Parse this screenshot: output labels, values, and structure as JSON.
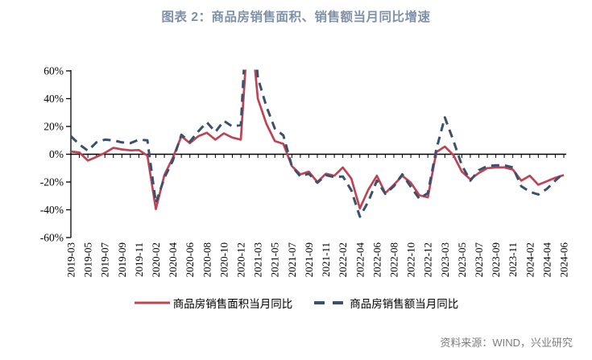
{
  "title": "图表 2：商品房销售面积、销售额当月同比增速",
  "source": "资料来源：WIND，兴业研究",
  "colors": {
    "title": "#7E90A9",
    "axis": "#000000",
    "tick_label": "#000000",
    "area_line": "#BF4453",
    "amount_line": "#3A506E",
    "source_text": "#7C7C7C",
    "background": "#FFFFFF"
  },
  "legend": [
    {
      "label": "商品房销售面积当月同比",
      "style": "solid"
    },
    {
      "label": "商品房销售额当月同比",
      "style": "dashed"
    }
  ],
  "chart_data": {
    "type": "line",
    "title": "图表 2：商品房销售面积、销售额当月同比增速",
    "xlabel": "",
    "ylabel": "",
    "ylim": [
      -60,
      60
    ],
    "grid": false,
    "legend_position": "bottom",
    "clipped_above": 60,
    "yticks": [
      {
        "value": 60,
        "label": "60%"
      },
      {
        "value": 40,
        "label": "40%"
      },
      {
        "value": 20,
        "label": "20%"
      },
      {
        "value": 0,
        "label": "0%"
      },
      {
        "value": -20,
        "label": "-20%"
      },
      {
        "value": -40,
        "label": "-40%"
      },
      {
        "value": -60,
        "label": "-60%"
      }
    ],
    "x": [
      "2019-03",
      "2019-04",
      "2019-05",
      "2019-06",
      "2019-07",
      "2019-08",
      "2019-09",
      "2019-10",
      "2019-11",
      "2019-12",
      "2020-02",
      "2020-03",
      "2020-04",
      "2020-05",
      "2020-06",
      "2020-07",
      "2020-08",
      "2020-09",
      "2020-10",
      "2020-11",
      "2020-12",
      "2021-02",
      "2021-03",
      "2021-04",
      "2021-05",
      "2021-06",
      "2021-07",
      "2021-08",
      "2021-09",
      "2021-10",
      "2021-11",
      "2021-12",
      "2022-02",
      "2022-03",
      "2022-04",
      "2022-05",
      "2022-06",
      "2022-07",
      "2022-08",
      "2022-09",
      "2022-10",
      "2022-11",
      "2022-12",
      "2023-02",
      "2023-03",
      "2023-04",
      "2023-05",
      "2023-06",
      "2023-07",
      "2023-08",
      "2023-09",
      "2023-10",
      "2023-11",
      "2023-12",
      "2024-02",
      "2024-03",
      "2024-04",
      "2024-05",
      "2024-06"
    ],
    "x_axis_tick_labels": [
      "2019-03",
      "2019-05",
      "2019-07",
      "2019-09",
      "2019-11",
      "2020-02",
      "2020-04",
      "2020-06",
      "2020-08",
      "2020-10",
      "2020-12",
      "2021-03",
      "2021-05",
      "2021-07",
      "2021-09",
      "2021-11",
      "2022-02",
      "2022-04",
      "2022-06",
      "2022-08",
      "2022-10",
      "2022-12",
      "2023-03",
      "2023-05",
      "2023-07",
      "2023-09",
      "2023-11",
      "2024-02",
      "2024-04",
      "2024-06"
    ],
    "series": [
      {
        "name": "商品房销售面积当月同比",
        "style": "solid",
        "color": "#BF4453",
        "values": [
          2,
          1.2,
          -4.6,
          -2,
          1,
          4.6,
          3.5,
          2.8,
          3,
          -1,
          -39.5,
          -15,
          -2.5,
          13,
          8,
          13,
          15.5,
          10.5,
          15,
          12,
          10.5,
          105,
          40,
          22,
          9.5,
          7.5,
          -8.5,
          -14.5,
          -12.5,
          -20,
          -14,
          -15.5,
          -9.5,
          -17.5,
          -39,
          -25.5,
          -15.5,
          -28,
          -22,
          -15.5,
          -20.5,
          -29.5,
          -31,
          1.5,
          5.5,
          -0.5,
          -12.5,
          -18,
          -13.5,
          -10,
          -9.5,
          -9.5,
          -11,
          -19,
          -15.5,
          -22,
          -19.5,
          -17,
          -15
        ]
      },
      {
        "name": "商品房销售额当月同比",
        "style": "dashed",
        "color": "#3A506E",
        "values": [
          13,
          7,
          2.5,
          8.5,
          10.5,
          10,
          8.5,
          8,
          10.5,
          10,
          -35,
          -17,
          -4.5,
          14,
          9,
          16.5,
          23,
          16,
          24,
          20,
          21,
          133,
          55,
          34.5,
          18.5,
          13.5,
          -8.5,
          -16,
          -14,
          -20.5,
          -15,
          -16.5,
          -16,
          -26,
          -45,
          -34,
          -19,
          -28.5,
          -23,
          -14.5,
          -23.5,
          -32,
          -28,
          3.5,
          26.5,
          10,
          -8,
          -19,
          -11.5,
          -8.5,
          -8,
          -8,
          -9.5,
          -23,
          -27,
          -29,
          -25,
          -19,
          -13.5
        ]
      }
    ]
  }
}
